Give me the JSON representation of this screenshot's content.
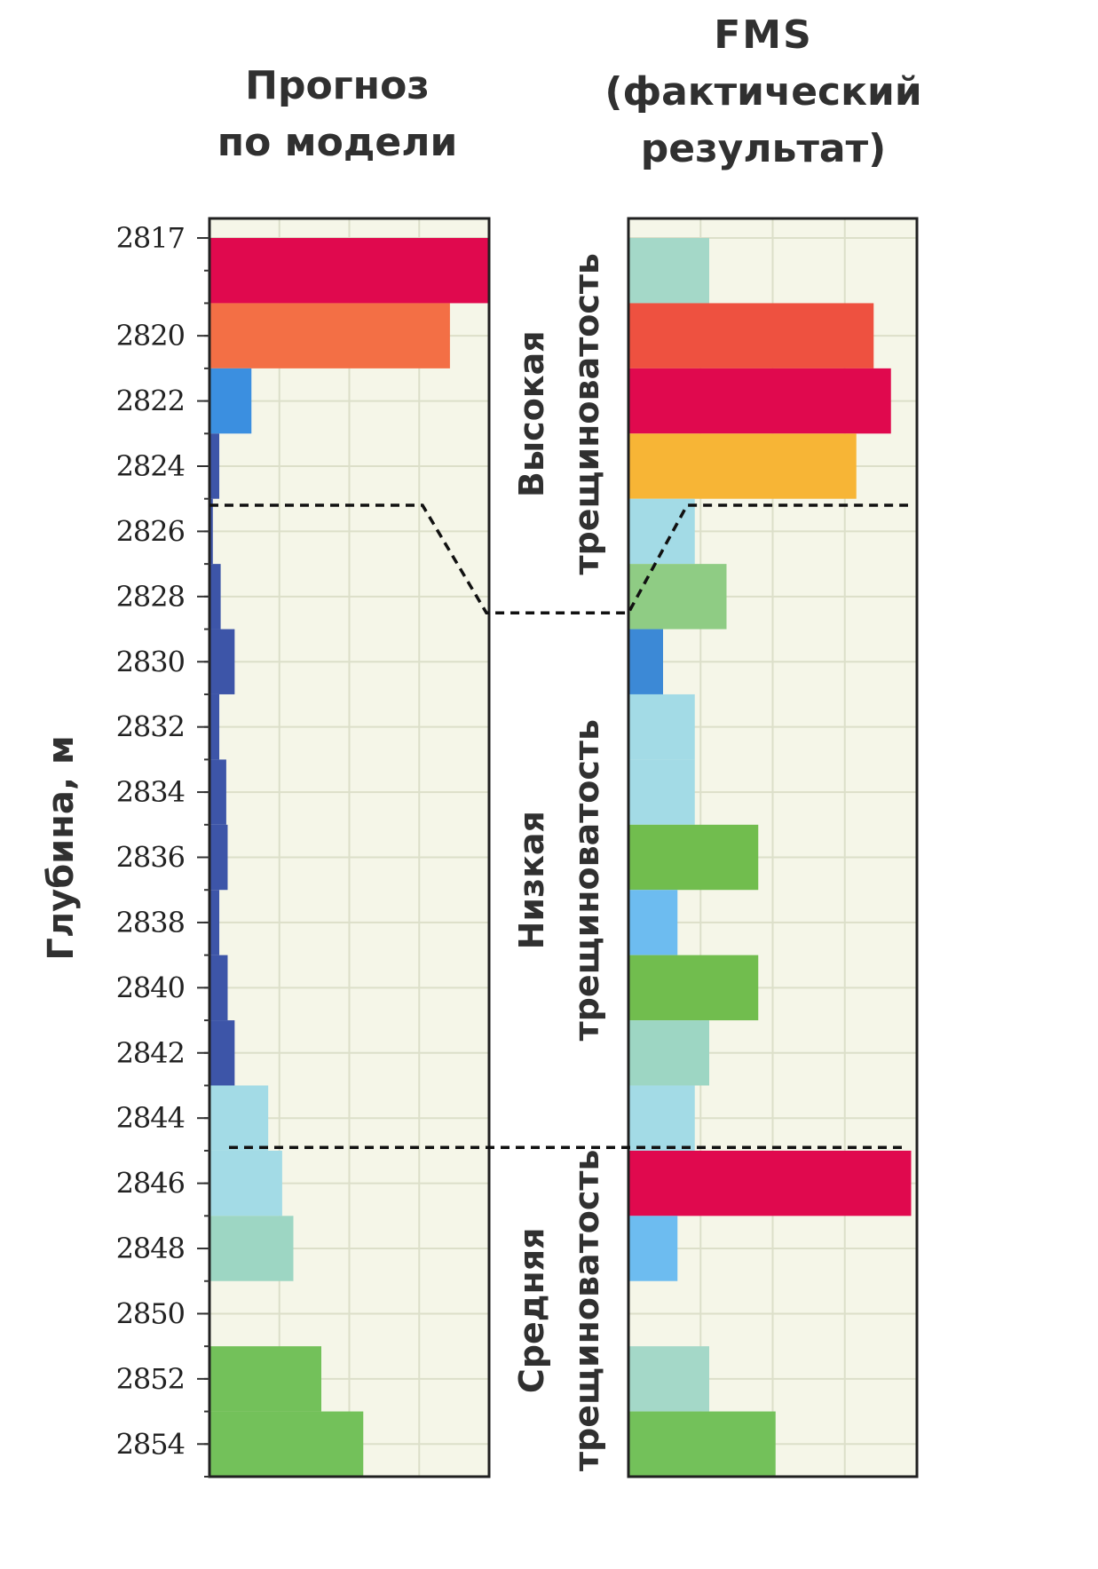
{
  "titles": {
    "left_line1": "Прогноз",
    "left_line2": "по модели",
    "right_line1": "FMS",
    "right_line2": "(фактический",
    "right_line3": "результат)"
  },
  "chart_data": {
    "type": "bar",
    "orientation": "horizontal",
    "ylabel": "Глубина, м",
    "y_axis_reversed": true,
    "ylim": [
      2816.4,
      2855.0
    ],
    "y_ticks": [
      2817,
      2820,
      2822,
      2824,
      2826,
      2828,
      2830,
      2832,
      2834,
      2836,
      2838,
      2840,
      2842,
      2844,
      2846,
      2848,
      2850,
      2852,
      2854
    ],
    "y_tick_labels": [
      "2817",
      "2820",
      "2822",
      "2824",
      "2826",
      "2828",
      "2830",
      "2832",
      "2834",
      "2836",
      "2838",
      "2840",
      "2842",
      "2844",
      "2846",
      "2848",
      "2850",
      "2852",
      "2854"
    ],
    "highlight_tick_label": "2817",
    "highlight_color": "#e8453c",
    "value_scale": "relative (fraction of track width)",
    "panels": [
      {
        "title": "Прогноз по модели",
        "bars": [
          {
            "from": 2817.0,
            "to": 2819.0,
            "value": 1.0,
            "color": "#e0094e"
          },
          {
            "from": 2819.0,
            "to": 2821.0,
            "value": 0.86,
            "color": "#f36f45"
          },
          {
            "from": 2821.0,
            "to": 2823.0,
            "value": 0.15,
            "color": "#3b8fe0"
          },
          {
            "from": 2823.0,
            "to": 2825.0,
            "value": 0.035,
            "color": "#3d55a8"
          },
          {
            "from": 2825.0,
            "to": 2827.0,
            "value": 0.012,
            "color": "#3d55a8"
          },
          {
            "from": 2827.0,
            "to": 2829.0,
            "value": 0.04,
            "color": "#3d55a8"
          },
          {
            "from": 2829.0,
            "to": 2831.0,
            "value": 0.09,
            "color": "#3d55a8"
          },
          {
            "from": 2831.0,
            "to": 2833.0,
            "value": 0.035,
            "color": "#3d55a8"
          },
          {
            "from": 2833.0,
            "to": 2835.0,
            "value": 0.06,
            "color": "#3d55a8"
          },
          {
            "from": 2835.0,
            "to": 2837.0,
            "value": 0.065,
            "color": "#3d55a8"
          },
          {
            "from": 2837.0,
            "to": 2839.0,
            "value": 0.035,
            "color": "#3d55a8"
          },
          {
            "from": 2839.0,
            "to": 2841.0,
            "value": 0.065,
            "color": "#3d55a8"
          },
          {
            "from": 2841.0,
            "to": 2843.0,
            "value": 0.09,
            "color": "#3d55a8"
          },
          {
            "from": 2843.0,
            "to": 2845.0,
            "value": 0.21,
            "color": "#a3dbe6"
          },
          {
            "from": 2845.0,
            "to": 2847.0,
            "value": 0.26,
            "color": "#a3dbe6"
          },
          {
            "from": 2847.0,
            "to": 2849.0,
            "value": 0.3,
            "color": "#9dd6c3"
          },
          {
            "from": 2849.0,
            "to": 2851.0,
            "value": 0.0,
            "color": "#ffffff"
          },
          {
            "from": 2851.0,
            "to": 2853.0,
            "value": 0.4,
            "color": "#73c15a"
          },
          {
            "from": 2853.0,
            "to": 2855.0,
            "value": 0.55,
            "color": "#73c15a"
          }
        ]
      },
      {
        "title": "FMS (фактический результат)",
        "bars": [
          {
            "from": 2817.0,
            "to": 2819.0,
            "value": 0.28,
            "color": "#a4d8c8"
          },
          {
            "from": 2819.0,
            "to": 2821.0,
            "value": 0.85,
            "color": "#ee5140"
          },
          {
            "from": 2821.0,
            "to": 2823.0,
            "value": 0.91,
            "color": "#e0094e"
          },
          {
            "from": 2823.0,
            "to": 2825.0,
            "value": 0.79,
            "color": "#f7b536"
          },
          {
            "from": 2825.0,
            "to": 2827.0,
            "value": 0.23,
            "color": "#a3dbe6"
          },
          {
            "from": 2827.0,
            "to": 2829.0,
            "value": 0.34,
            "color": "#8fcc84"
          },
          {
            "from": 2829.0,
            "to": 2831.0,
            "value": 0.12,
            "color": "#3c89d6"
          },
          {
            "from": 2831.0,
            "to": 2833.0,
            "value": 0.23,
            "color": "#a3dbe6"
          },
          {
            "from": 2833.0,
            "to": 2835.0,
            "value": 0.23,
            "color": "#a3dbe6"
          },
          {
            "from": 2835.0,
            "to": 2837.0,
            "value": 0.45,
            "color": "#71bd4e"
          },
          {
            "from": 2837.0,
            "to": 2839.0,
            "value": 0.17,
            "color": "#6dbcf0"
          },
          {
            "from": 2839.0,
            "to": 2841.0,
            "value": 0.45,
            "color": "#71bd4e"
          },
          {
            "from": 2841.0,
            "to": 2843.0,
            "value": 0.28,
            "color": "#9dd6c3"
          },
          {
            "from": 2843.0,
            "to": 2845.0,
            "value": 0.23,
            "color": "#a3dbe6"
          },
          {
            "from": 2845.0,
            "to": 2847.0,
            "value": 0.98,
            "color": "#e0094e"
          },
          {
            "from": 2847.0,
            "to": 2849.0,
            "value": 0.17,
            "color": "#6dbcf0"
          },
          {
            "from": 2849.0,
            "to": 2851.0,
            "value": 0.0,
            "color": "#ffffff"
          },
          {
            "from": 2851.0,
            "to": 2853.0,
            "value": 0.28,
            "color": "#a4d8c8"
          },
          {
            "from": 2853.0,
            "to": 2855.0,
            "value": 0.51,
            "color": "#73c15a"
          }
        ]
      }
    ],
    "zones": [
      {
        "label_line1": "Высокая",
        "label_line2": "трещиноватость"
      },
      {
        "label_line1": "Низкая",
        "label_line2": "трещиноватость"
      },
      {
        "label_line1": "Средняя",
        "label_line2": "трещиноватость"
      }
    ],
    "boundaries": {
      "model_high_low": 2825.2,
      "fms_high_low": 2825.2,
      "label_column_high_low": 2828.5,
      "low_medium": 2844.9
    },
    "grid": true,
    "panel_background": "#f5f6e8",
    "grid_color": "#dcdfc9"
  }
}
